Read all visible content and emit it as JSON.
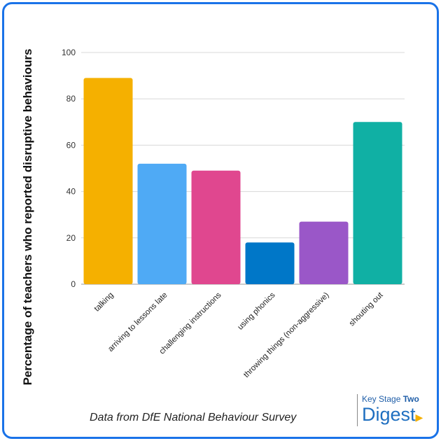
{
  "chart_data": {
    "type": "bar",
    "categories": [
      "talking",
      "arriving to lessons late",
      "challenging instructions",
      "using phonics",
      "throwing things (non-aggressive)",
      "shouting out"
    ],
    "values": [
      89,
      52,
      49,
      18,
      27,
      70
    ],
    "colors": [
      "#f5b000",
      "#4faaf5",
      "#e0478f",
      "#0077c8",
      "#9a57c8",
      "#10b0a4"
    ],
    "ylabel": "Percentage of teachers who reported disruptive behaviours",
    "xlabel": "",
    "ylim": [
      0,
      100
    ],
    "yticks": [
      0,
      20,
      40,
      60,
      80,
      100
    ],
    "grid": true
  },
  "source_note": "Data from DfE National Behaviour Survey",
  "logo": {
    "line1": "Key Stage",
    "line1_bold": "Two",
    "line2": "Digest"
  }
}
